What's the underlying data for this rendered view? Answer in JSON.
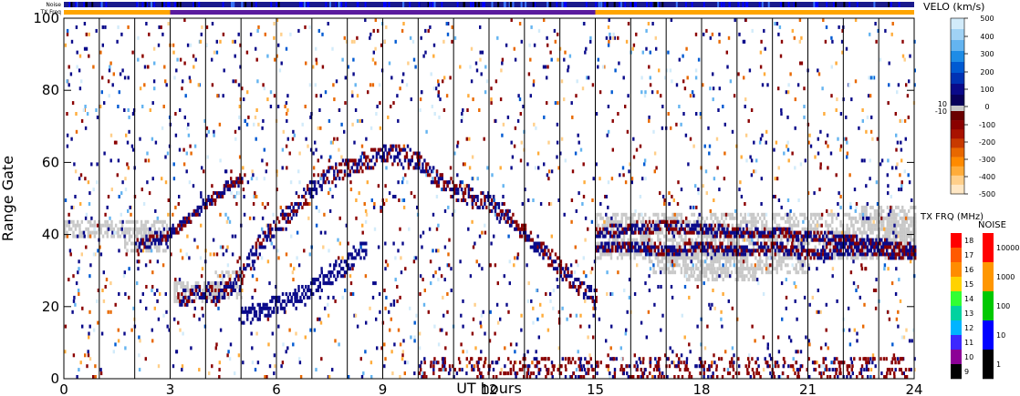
{
  "chart_data": {
    "type": "heatmap",
    "title": "",
    "xlabel": "UT hours",
    "ylabel": "Range Gate",
    "xlim": [
      0,
      24
    ],
    "ylim": [
      0,
      100
    ],
    "x_ticks": [
      "0",
      "3",
      "6",
      "9",
      "12",
      "15",
      "18",
      "21",
      "24"
    ],
    "y_ticks": [
      "0",
      "20",
      "40",
      "60",
      "80",
      "100"
    ],
    "grid": "vertical lines every UT hour",
    "strips": {
      "noise_label": "Noise",
      "txfreq_label": "TX Freq",
      "txfreq_segments": [
        {
          "start": 0,
          "end": 3,
          "color": "#ffa500"
        },
        {
          "start": 3,
          "end": 15,
          "color": "#5a1a9e"
        },
        {
          "start": 15,
          "end": 24,
          "color": "#ffa500"
        }
      ]
    },
    "velocity_scale": {
      "title": "VELO (km/s)",
      "ticks": [
        "500",
        "400",
        "300",
        "200",
        "100",
        "0",
        "-100",
        "-200",
        "-300",
        "-400",
        "-500"
      ],
      "ground_scatter_ticks": [
        "10",
        "-10"
      ],
      "colors": [
        "#ffe7c4",
        "#ffcf8a",
        "#ffac3a",
        "#ff8a00",
        "#e86800",
        "#c83a00",
        "#a81200",
        "#8a0000",
        "#6a0000",
        "#08005a",
        "#0a0a8a",
        "#0032b4",
        "#005ad2",
        "#1e8ce6",
        "#64b4f0",
        "#a0d2f5",
        "#d2ebfa"
      ]
    },
    "txfreq_scale": {
      "title": "TX FRQ (MHz)",
      "ticks": [
        "18",
        "17",
        "16",
        "15",
        "14",
        "13",
        "12",
        "11",
        "10",
        "9"
      ],
      "colors": [
        "#ff0000",
        "#ff5a00",
        "#ff8c00",
        "#ffd200",
        "#32ff32",
        "#00d2a0",
        "#00b4ff",
        "#3c28ff",
        "#8c0096",
        "#000000"
      ]
    },
    "noise_scale": {
      "title": "NOISE",
      "ticks": [
        "10000",
        "1000",
        "100",
        "10",
        "1"
      ],
      "colors": [
        "#ff0000",
        "#ff9600",
        "#00c800",
        "#0000ff",
        "#000000"
      ]
    },
    "ground_scatter_color": "#c8c8c8",
    "series": [
      {
        "values": [
          [
            3.2,
            22
          ],
          [
            3.6,
            22.5
          ],
          [
            4.0,
            23
          ],
          [
            4.5,
            24
          ],
          [
            5.0,
            28
          ],
          [
            5.4,
            35
          ],
          [
            5.8,
            40
          ],
          [
            6.3,
            45
          ],
          [
            6.8,
            50
          ],
          [
            7.3,
            55
          ],
          [
            8,
            58
          ],
          [
            9,
            62
          ],
          [
            10,
            60
          ],
          [
            10.5,
            55
          ],
          [
            11,
            52
          ],
          [
            11.5,
            50
          ],
          [
            12,
            48
          ],
          [
            12.5,
            45
          ],
          [
            13,
            40
          ],
          [
            13.5,
            35
          ],
          [
            14,
            30
          ],
          [
            14.5,
            25
          ],
          [
            15,
            22
          ]
        ]
      },
      {
        "values": [
          [
            5.0,
            17
          ],
          [
            5.5,
            18
          ],
          [
            6.0,
            20
          ],
          [
            6.5,
            22
          ],
          [
            7.0,
            25
          ],
          [
            7.5,
            28
          ],
          [
            8.0,
            32
          ],
          [
            8.5,
            36
          ]
        ]
      },
      {
        "values": [
          [
            15,
            40
          ],
          [
            16,
            41
          ],
          [
            17,
            42
          ],
          [
            18,
            41
          ],
          [
            19,
            40
          ],
          [
            20,
            40
          ],
          [
            21,
            39
          ],
          [
            22,
            38
          ],
          [
            23,
            37
          ],
          [
            24,
            35
          ]
        ]
      },
      {
        "values": [
          [
            15,
            36
          ],
          [
            16,
            36
          ],
          [
            17,
            35
          ],
          [
            18,
            36
          ],
          [
            19,
            35
          ],
          [
            20,
            36
          ],
          [
            21,
            34
          ],
          [
            22,
            35
          ],
          [
            23,
            35
          ],
          [
            24,
            34
          ]
        ]
      },
      {
        "values": [
          [
            2,
            36
          ],
          [
            2.5,
            38
          ],
          [
            3,
            40
          ],
          [
            3.5,
            44
          ],
          [
            4,
            48
          ],
          [
            4.5,
            52
          ],
          [
            5,
            55
          ]
        ]
      }
    ]
  }
}
